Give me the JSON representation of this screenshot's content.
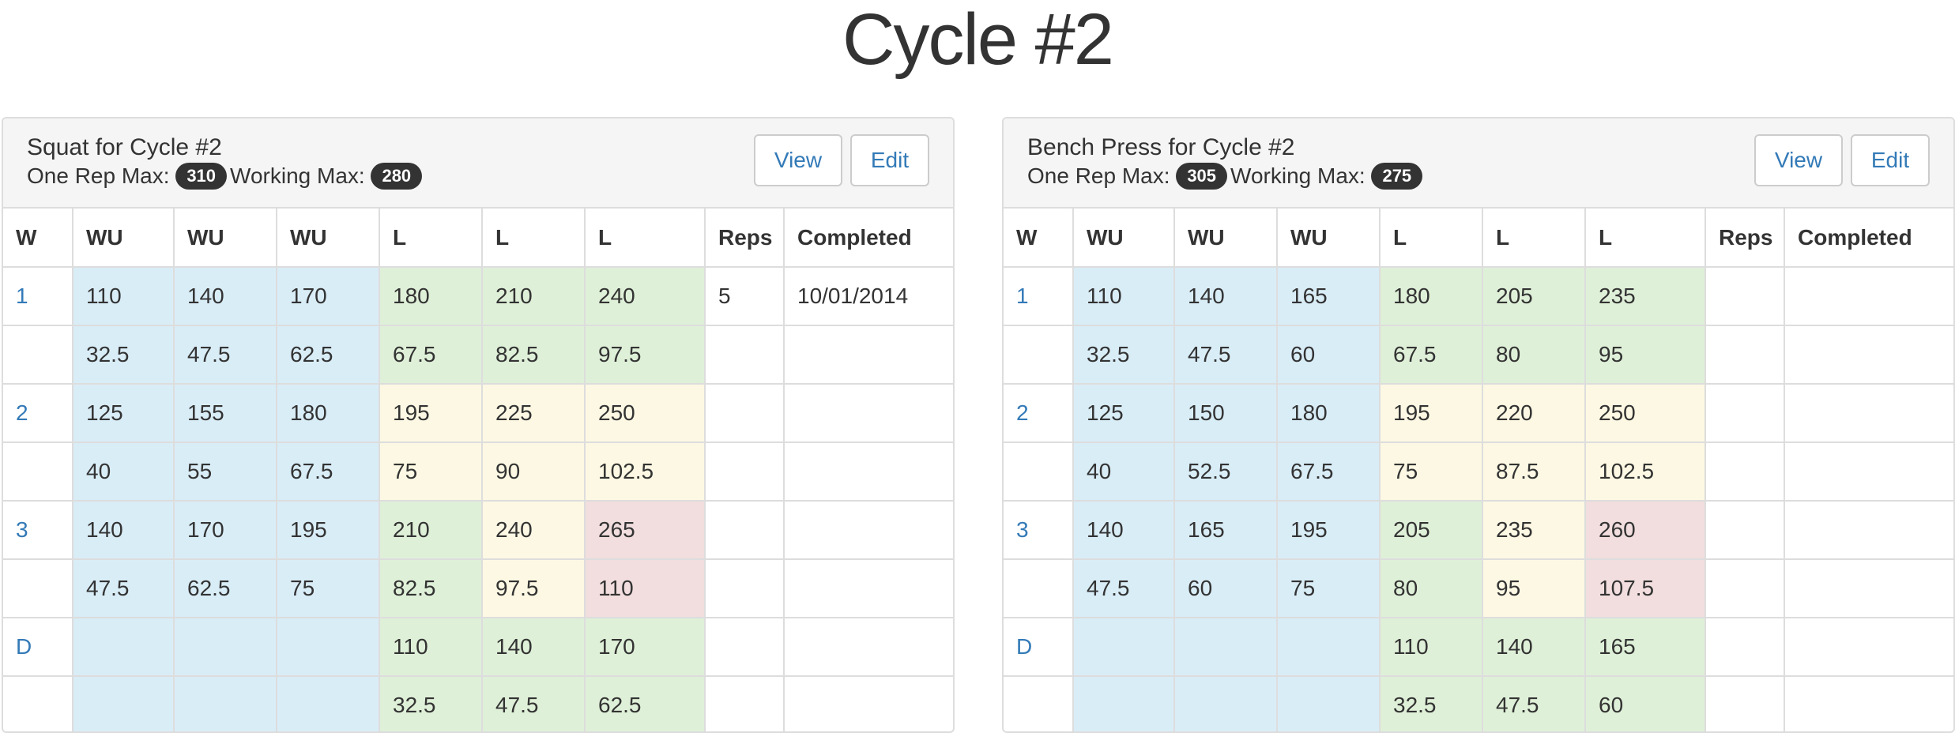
{
  "page": {
    "title": "Cycle #2"
  },
  "columns": [
    "W",
    "WU",
    "WU",
    "WU",
    "L",
    "L",
    "L",
    "Reps",
    "Completed"
  ],
  "buttons": {
    "view": "View",
    "edit": "Edit"
  },
  "labels": {
    "one_rep_max": "One Rep Max:",
    "working_max": "Working Max:"
  },
  "colors": {
    "info": "#d9edf7",
    "success": "#dff0d8",
    "warning": "#fcf8e3",
    "danger": "#f2dede",
    "link": "#337ab7"
  },
  "panels": [
    {
      "title": "Squat for Cycle #2",
      "one_rep_max": "310",
      "working_max": "280",
      "rows": [
        {
          "w": "1",
          "cells": [
            "110",
            "140",
            "170",
            "180",
            "210",
            "240"
          ],
          "shade": [
            "info",
            "info",
            "info",
            "success",
            "success",
            "success"
          ],
          "reps": "5",
          "completed": "10/01/2014"
        },
        {
          "w": "",
          "cells": [
            "32.5",
            "47.5",
            "62.5",
            "67.5",
            "82.5",
            "97.5"
          ],
          "shade": [
            "info",
            "info",
            "info",
            "success",
            "success",
            "success"
          ],
          "reps": "",
          "completed": ""
        },
        {
          "w": "2",
          "cells": [
            "125",
            "155",
            "180",
            "195",
            "225",
            "250"
          ],
          "shade": [
            "info",
            "info",
            "info",
            "warning",
            "warning",
            "warning"
          ],
          "reps": "",
          "completed": ""
        },
        {
          "w": "",
          "cells": [
            "40",
            "55",
            "67.5",
            "75",
            "90",
            "102.5"
          ],
          "shade": [
            "info",
            "info",
            "info",
            "warning",
            "warning",
            "warning"
          ],
          "reps": "",
          "completed": ""
        },
        {
          "w": "3",
          "cells": [
            "140",
            "170",
            "195",
            "210",
            "240",
            "265"
          ],
          "shade": [
            "info",
            "info",
            "info",
            "success",
            "warning",
            "danger"
          ],
          "reps": "",
          "completed": ""
        },
        {
          "w": "",
          "cells": [
            "47.5",
            "62.5",
            "75",
            "82.5",
            "97.5",
            "110"
          ],
          "shade": [
            "info",
            "info",
            "info",
            "success",
            "warning",
            "danger"
          ],
          "reps": "",
          "completed": ""
        },
        {
          "w": "D",
          "cells": [
            "",
            "",
            "",
            "110",
            "140",
            "170"
          ],
          "shade": [
            "info",
            "info",
            "info",
            "success",
            "success",
            "success"
          ],
          "reps": "",
          "completed": ""
        },
        {
          "w": "",
          "cells": [
            "",
            "",
            "",
            "32.5",
            "47.5",
            "62.5"
          ],
          "shade": [
            "info",
            "info",
            "info",
            "success",
            "success",
            "success"
          ],
          "reps": "",
          "completed": ""
        }
      ]
    },
    {
      "title": "Bench Press for Cycle #2",
      "one_rep_max": "305",
      "working_max": "275",
      "rows": [
        {
          "w": "1",
          "cells": [
            "110",
            "140",
            "165",
            "180",
            "205",
            "235"
          ],
          "shade": [
            "info",
            "info",
            "info",
            "success",
            "success",
            "success"
          ],
          "reps": "",
          "completed": ""
        },
        {
          "w": "",
          "cells": [
            "32.5",
            "47.5",
            "60",
            "67.5",
            "80",
            "95"
          ],
          "shade": [
            "info",
            "info",
            "info",
            "success",
            "success",
            "success"
          ],
          "reps": "",
          "completed": ""
        },
        {
          "w": "2",
          "cells": [
            "125",
            "150",
            "180",
            "195",
            "220",
            "250"
          ],
          "shade": [
            "info",
            "info",
            "info",
            "warning",
            "warning",
            "warning"
          ],
          "reps": "",
          "completed": ""
        },
        {
          "w": "",
          "cells": [
            "40",
            "52.5",
            "67.5",
            "75",
            "87.5",
            "102.5"
          ],
          "shade": [
            "info",
            "info",
            "info",
            "warning",
            "warning",
            "warning"
          ],
          "reps": "",
          "completed": ""
        },
        {
          "w": "3",
          "cells": [
            "140",
            "165",
            "195",
            "205",
            "235",
            "260"
          ],
          "shade": [
            "info",
            "info",
            "info",
            "success",
            "warning",
            "danger"
          ],
          "reps": "",
          "completed": ""
        },
        {
          "w": "",
          "cells": [
            "47.5",
            "60",
            "75",
            "80",
            "95",
            "107.5"
          ],
          "shade": [
            "info",
            "info",
            "info",
            "success",
            "warning",
            "danger"
          ],
          "reps": "",
          "completed": ""
        },
        {
          "w": "D",
          "cells": [
            "",
            "",
            "",
            "110",
            "140",
            "165"
          ],
          "shade": [
            "info",
            "info",
            "info",
            "success",
            "success",
            "success"
          ],
          "reps": "",
          "completed": ""
        },
        {
          "w": "",
          "cells": [
            "",
            "",
            "",
            "32.5",
            "47.5",
            "60"
          ],
          "shade": [
            "info",
            "info",
            "info",
            "success",
            "success",
            "success"
          ],
          "reps": "",
          "completed": ""
        }
      ]
    }
  ]
}
